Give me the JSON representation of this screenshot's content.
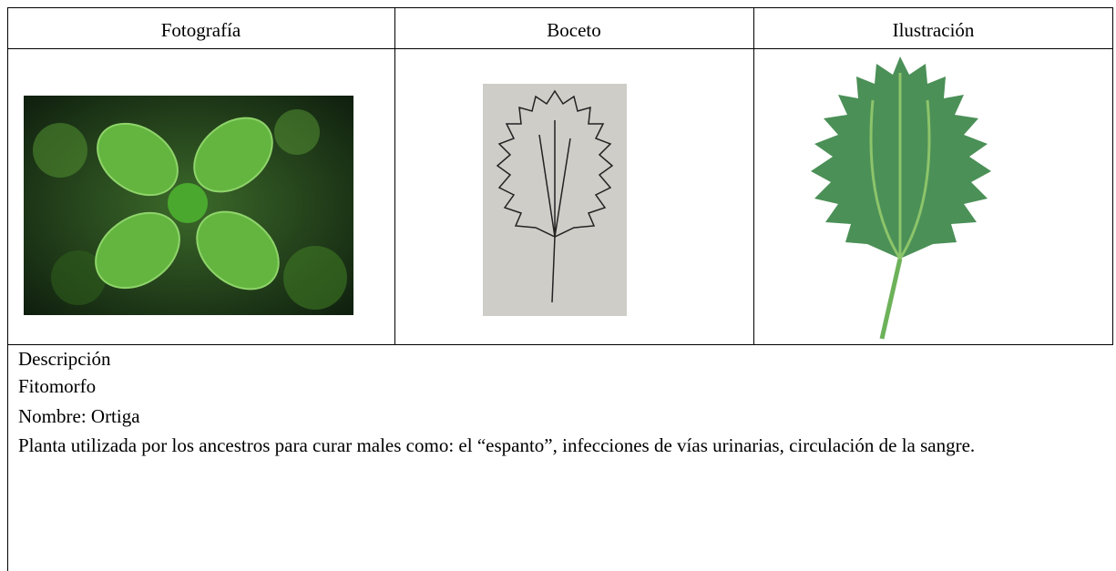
{
  "table": {
    "headers": [
      "Fotografía",
      "Boceto",
      "Ilustración"
    ]
  },
  "description": {
    "heading": "Descripción",
    "category": "Fitomorfo",
    "name": "Nombre: Ortiga",
    "text": "Planta utilizada por los ancestros para curar males como: el “espanto”, infecciones de vías urinarias, circulación de la sangre."
  }
}
